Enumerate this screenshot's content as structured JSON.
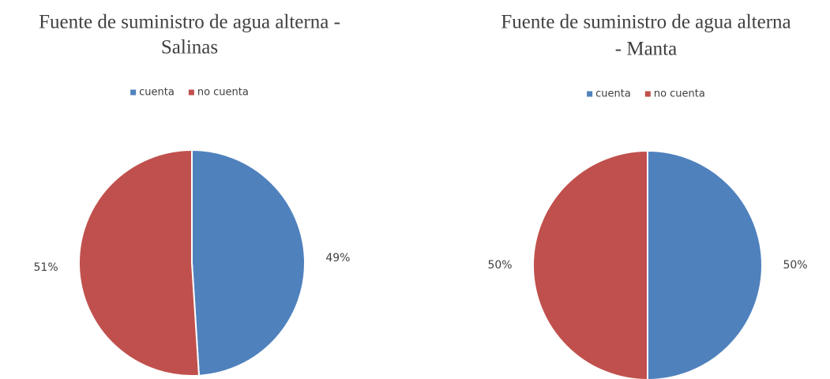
{
  "chart_data": [
    {
      "type": "pie",
      "title": [
        "Fuente de suministro de agua alterna -",
        "Salinas"
      ],
      "categories": [
        "cuenta",
        "no cuenta"
      ],
      "values": [
        49,
        51
      ],
      "value_labels": [
        "49%",
        "51%"
      ],
      "colors": [
        "#4f81bd",
        "#c0504d"
      ],
      "legend": "top"
    },
    {
      "type": "pie",
      "title": [
        "Fuente de suministro de agua alterna",
        "- Manta"
      ],
      "categories": [
        "cuenta",
        "no cuenta"
      ],
      "values": [
        50,
        50
      ],
      "value_labels": [
        "50%",
        "50%"
      ],
      "colors": [
        "#4f81bd",
        "#c0504d"
      ],
      "legend": "top"
    }
  ]
}
